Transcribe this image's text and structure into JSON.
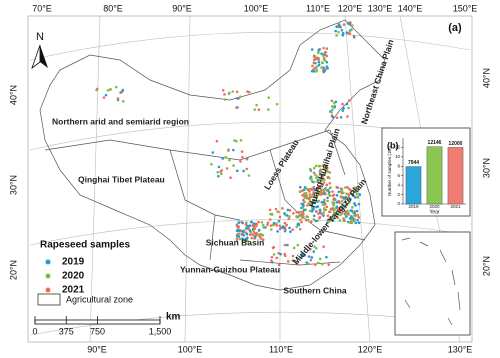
{
  "map": {
    "panel_label": "(a)",
    "north": "N",
    "top_lon_labels": [
      "70°E",
      "80°E",
      "90°E",
      "100°E",
      "110°E",
      "120°E",
      "130°E",
      "140°E",
      "150°E"
    ],
    "bottom_lon_labels": [
      "90°E",
      "100°E",
      "110°E",
      "120°E",
      "130°E"
    ],
    "left_lat_labels": [
      "40°N",
      "30°N",
      "20°N"
    ],
    "right_lat_labels": [
      "40°N",
      "30°N",
      "20°N"
    ],
    "regions": [
      "Northern arid and semiarid region",
      "Qinghai Tibet Plateau",
      "Loess Plateau",
      "Huang-Huaihai Plain",
      "Northeast China Plain",
      "Sichuan Basin",
      "Middle-lower Yangtze Plain",
      "Yunnan-Guizhou Plateau",
      "Southern China"
    ],
    "legend": {
      "title": "Rapeseed samples",
      "series": [
        {
          "name": "2019",
          "color": "#1f9bd7"
        },
        {
          "name": "2020",
          "color": "#7ac143"
        },
        {
          "name": "2021",
          "color": "#f26b5b"
        }
      ],
      "zone": "Agricultural zone"
    },
    "scale": {
      "ticks": [
        0,
        375,
        750,
        {
          "value": 1500,
          "label": "1,500"
        }
      ],
      "unit": "km"
    }
  },
  "chart_data": {
    "type": "bar",
    "panel_label": "(b)",
    "ylabel": "Number of samples (10³)",
    "xlabel": "Year",
    "categories": [
      "2019",
      "2020",
      "2021"
    ],
    "values": [
      7.944,
      12.146,
      12.0
    ],
    "value_labels": [
      "7944",
      "12146",
      "12000"
    ],
    "colors": [
      "#2aa6db",
      "#8ac651",
      "#f07b72"
    ],
    "ylim": [
      0,
      14
    ],
    "yticks": [
      0,
      2,
      4,
      6,
      8,
      10,
      12
    ]
  }
}
